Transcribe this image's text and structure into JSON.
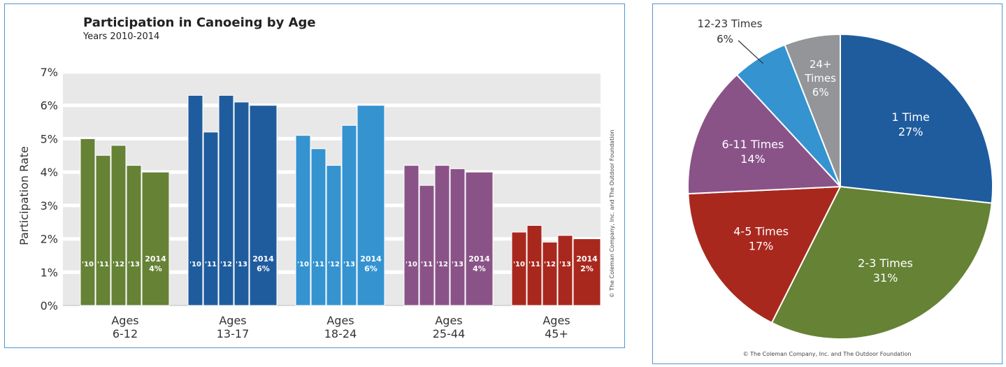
{
  "bar_chart_title": "Participation in Canoeing by Age",
  "bar_chart_subtitle": "Years 2010-2014",
  "bar_chart_credit": "© The Coleman Company, Inc. and The Outdoor Foundation",
  "pie_chart_credit": "© The Coleman Company, Inc. and The Outdoor Foundation",
  "colors": {
    "grid_band": "#e8e8e8",
    "ages_6_12": "#658235",
    "ages_13_17": "#1f5c9e",
    "ages_18_24": "#3593d0",
    "ages_25_44": "#8a5388",
    "ages_45_plus": "#a9281e",
    "pie_gray": "#939598"
  },
  "chart_data": [
    {
      "type": "bar",
      "title": "Participation in Canoeing by Age",
      "subtitle": "Years 2010-2014",
      "ylabel": "Participation Rate",
      "xlabel": "",
      "ylim": [
        0,
        7
      ],
      "yticks": [
        "0%",
        "1%",
        "2%",
        "3%",
        "4%",
        "5%",
        "6%",
        "7%"
      ],
      "grid": true,
      "year_labels": [
        "'10",
        "'11",
        "'12",
        "'13",
        "2014"
      ],
      "groups": [
        {
          "label_line1": "Ages",
          "label_line2": "6-12",
          "color_key": "ages_6_12",
          "values": [
            5.0,
            4.5,
            4.8,
            4.2,
            4.0
          ],
          "value_label": "4%"
        },
        {
          "label_line1": "Ages",
          "label_line2": "13-17",
          "color_key": "ages_13_17",
          "values": [
            6.3,
            5.2,
            6.3,
            6.1,
            6.0
          ],
          "value_label": "6%"
        },
        {
          "label_line1": "Ages",
          "label_line2": "18-24",
          "color_key": "ages_18_24",
          "values": [
            5.1,
            4.7,
            4.2,
            5.4,
            6.0
          ],
          "value_label": "6%"
        },
        {
          "label_line1": "Ages",
          "label_line2": "25-44",
          "color_key": "ages_25_44",
          "values": [
            4.2,
            3.6,
            4.2,
            4.1,
            4.0
          ],
          "value_label": "4%"
        },
        {
          "label_line1": "Ages",
          "label_line2": "45+",
          "color_key": "ages_45_plus",
          "values": [
            2.2,
            2.4,
            1.9,
            2.1,
            2.0
          ],
          "value_label": "2%"
        }
      ]
    },
    {
      "type": "pie",
      "slices": [
        {
          "label": "1 Time",
          "value": 27,
          "value_label": "27%",
          "color_key": "ages_13_17"
        },
        {
          "label": "2-3 Times",
          "value": 31,
          "value_label": "31%",
          "color_key": "ages_6_12"
        },
        {
          "label": "4-5 Times",
          "value": 17,
          "value_label": "17%",
          "color_key": "ages_45_plus"
        },
        {
          "label": "6-11 Times",
          "value": 14,
          "value_label": "14%",
          "color_key": "ages_25_44"
        },
        {
          "label": "12-23 Times",
          "value": 6,
          "value_label": "6%",
          "color_key": "ages_18_24"
        },
        {
          "label": "24+ Times",
          "value": 6,
          "value_label": "6%",
          "color_key": "pie_gray"
        }
      ]
    }
  ]
}
